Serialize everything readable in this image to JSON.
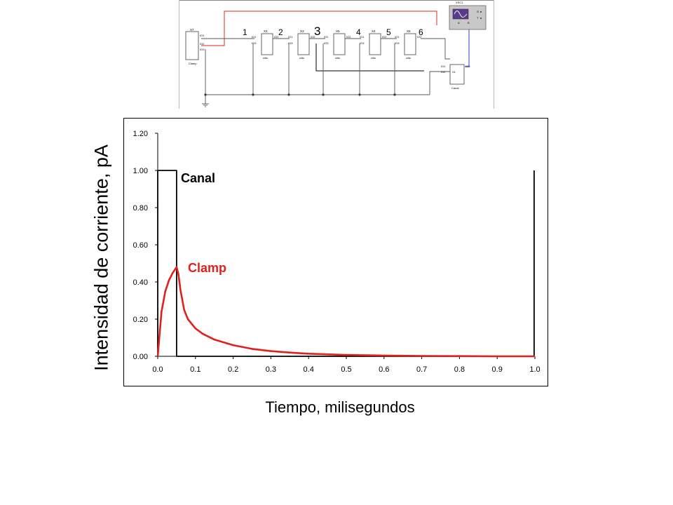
{
  "circuit": {
    "stage_numbers": [
      "1",
      "2",
      "3",
      "4",
      "5",
      "6"
    ],
    "clamp_block": {
      "ref": "X7",
      "pins": [
        "IO1",
        "IO2",
        "IO3"
      ],
      "name": "Clamp"
    },
    "cilio_blocks": [
      {
        "ref": "X2",
        "pins": [
          "IO1",
          "IO2",
          "IO3"
        ],
        "name": "cilio"
      },
      {
        "ref": "X3",
        "pins": [
          "IO1",
          "IO2",
          "IO3"
        ],
        "name": "cilio"
      },
      {
        "ref": "X5",
        "pins": [
          "IO1",
          "IO2",
          "IO3"
        ],
        "name": "cilio"
      },
      {
        "ref": "X4",
        "pins": [
          "IO1",
          "IO2",
          "IO3"
        ],
        "name": "cilio"
      },
      {
        "ref": "X6",
        "pins": [
          "IO1",
          "IO2",
          "IO3"
        ],
        "name": "cilio"
      }
    ],
    "canal_block": {
      "ref": "X1",
      "pins": [
        "IO1",
        "IO2",
        "IO3"
      ],
      "name": "Canal"
    },
    "scope": {
      "ref": "XSC1",
      "terminals": [
        "A",
        "B",
        "G",
        "T"
      ]
    },
    "wire_colors": {
      "clamp_signal": "#e05050",
      "canal_signal": "#5060d0",
      "ground": "#555555"
    }
  },
  "chart_data": {
    "type": "line",
    "xlabel": "Tiempo, milisegundos",
    "ylabel": "Intensidad de corriente, pA",
    "xlim": [
      0.0,
      1.0
    ],
    "ylim": [
      0.0,
      1.2
    ],
    "x_ticks": [
      "0.0",
      "0.1",
      "0.2",
      "0.3",
      "0.4",
      "0.5",
      "0.6",
      "0.7",
      "0.8",
      "0.9",
      "1.0"
    ],
    "y_ticks": [
      "0.00",
      "0.20",
      "0.40",
      "0.60",
      "0.80",
      "1.00",
      "1.20"
    ],
    "grid": false,
    "series": [
      {
        "name": "Canal",
        "color": "#000000",
        "x": [
          0.0,
          0.0,
          0.05,
          0.05,
          0.998,
          0.998
        ],
        "y": [
          0.0,
          1.0,
          1.0,
          0.0,
          0.0,
          1.0
        ]
      },
      {
        "name": "Clamp",
        "color": "#e0201c",
        "x": [
          0.0,
          0.01,
          0.02,
          0.03,
          0.04,
          0.05,
          0.055,
          0.06,
          0.07,
          0.08,
          0.1,
          0.12,
          0.15,
          0.2,
          0.25,
          0.3,
          0.35,
          0.4,
          0.5,
          0.6,
          0.7,
          0.8,
          0.9,
          1.0
        ],
        "y": [
          0.0,
          0.24,
          0.35,
          0.41,
          0.45,
          0.48,
          0.44,
          0.36,
          0.25,
          0.2,
          0.15,
          0.12,
          0.09,
          0.06,
          0.04,
          0.028,
          0.02,
          0.014,
          0.007,
          0.004,
          0.002,
          0.001,
          0.0,
          0.0
        ]
      }
    ]
  }
}
